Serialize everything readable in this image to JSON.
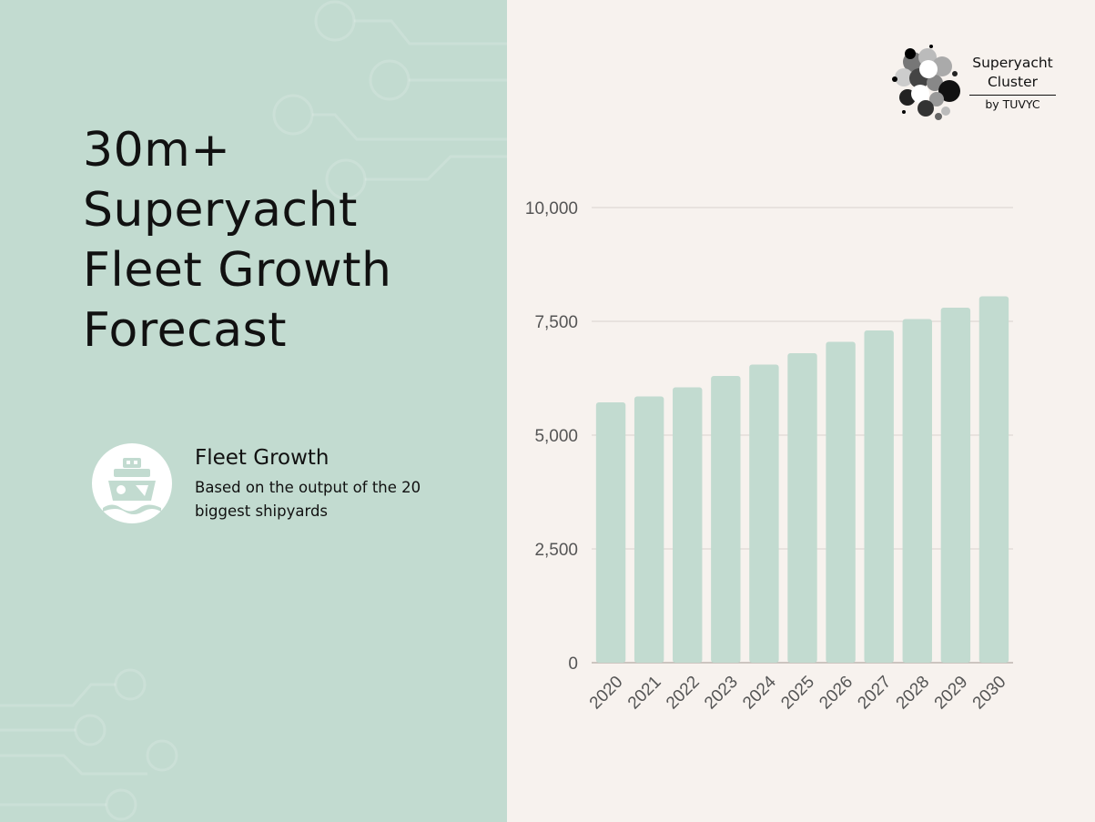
{
  "title_lines": [
    "30m+",
    "Superyacht",
    "Fleet Growth",
    "Forecast"
  ],
  "info": {
    "icon": "yacht-icon",
    "title": "Fleet Growth",
    "description": "Based on the output of the 20 biggest shipyards"
  },
  "logo": {
    "line1": "Superyacht",
    "line2": "Cluster",
    "byline": "by TUVYC"
  },
  "colors": {
    "panel": "#c2dbd0",
    "bar": "#c2dbd0",
    "background": "#f7f2ee",
    "grid": "#d8d2cd"
  },
  "chart_data": {
    "type": "bar",
    "categories": [
      "2020",
      "2021",
      "2022",
      "2023",
      "2024",
      "2025",
      "2026",
      "2027",
      "2028",
      "2029",
      "2030"
    ],
    "values": [
      5720,
      5850,
      6050,
      6300,
      6550,
      6800,
      7050,
      7300,
      7550,
      7800,
      8050
    ],
    "title": "",
    "xlabel": "",
    "ylabel": "",
    "ylim": [
      0,
      10000
    ],
    "yticks": [
      0,
      2500,
      5000,
      7500,
      10000
    ],
    "ytick_labels": [
      "0",
      "2,500",
      "5,000",
      "7,500",
      "10,000"
    ],
    "grid": true,
    "legend": "none"
  }
}
